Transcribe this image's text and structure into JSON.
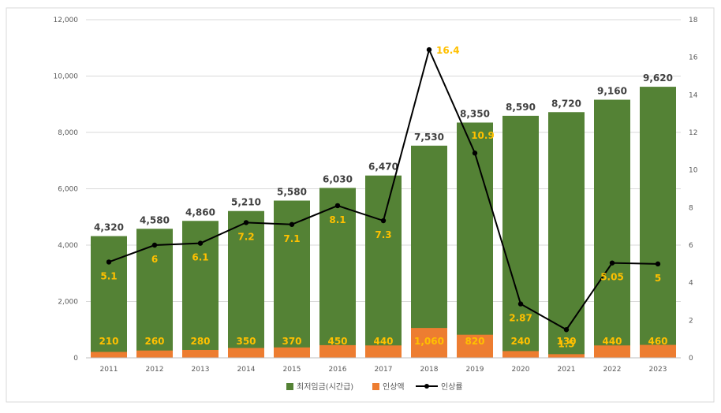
{
  "chart_data": {
    "type": "bar",
    "categories": [
      "2011",
      "2012",
      "2013",
      "2014",
      "2015",
      "2016",
      "2017",
      "2018",
      "2019",
      "2020",
      "2021",
      "2022",
      "2023"
    ],
    "series": [
      {
        "name": "최저임금(시간급)",
        "type": "bar",
        "axis": "left",
        "color": "#548235",
        "values": [
          4320,
          4580,
          4860,
          5210,
          5580,
          6030,
          6470,
          7530,
          8350,
          8590,
          8720,
          9160,
          9620
        ],
        "labels": [
          "4,320",
          "4,580",
          "4,860",
          "5,210",
          "5,580",
          "6,030",
          "6,470",
          "7,530",
          "8,350",
          "8,590",
          "8,720",
          "9,160",
          "9,620"
        ]
      },
      {
        "name": "인상액",
        "type": "bar",
        "axis": "left",
        "color": "#ed7d31",
        "values": [
          210,
          260,
          280,
          350,
          370,
          450,
          440,
          1060,
          820,
          240,
          130,
          440,
          460
        ],
        "labels": [
          "210",
          "260",
          "280",
          "350",
          "370",
          "450",
          "440",
          "1,060",
          "820",
          "240",
          "130",
          "440",
          "460"
        ]
      },
      {
        "name": "인상률",
        "type": "line",
        "axis": "right",
        "color": "#000000",
        "values": [
          5.1,
          6,
          6.1,
          7.2,
          7.1,
          8.1,
          7.3,
          16.4,
          10.9,
          2.87,
          1.5,
          5.05,
          5
        ],
        "labels": [
          "5.1",
          "6",
          "6.1",
          "7.2",
          "7.1",
          "8.1",
          "7.3",
          "16.4",
          "10.9",
          "2.87",
          "1.5",
          "5.05",
          "5"
        ]
      }
    ],
    "y_left": {
      "min": 0,
      "max": 12000,
      "ticks": [
        "0",
        "2,000",
        "4,000",
        "6,000",
        "8,000",
        "10,000",
        "12,000"
      ],
      "tick_values": [
        0,
        2000,
        4000,
        6000,
        8000,
        10000,
        12000
      ]
    },
    "y_right": {
      "min": 0,
      "max": 18,
      "ticks": [
        "0",
        "2",
        "4",
        "6",
        "8",
        "10",
        "12",
        "14",
        "16",
        "18"
      ],
      "tick_values": [
        0,
        2,
        4,
        6,
        8,
        10,
        12,
        14,
        16,
        18
      ]
    },
    "label_color": "#ffc000",
    "total_label_color": "#404040",
    "grid": true,
    "legend": "bottom-center"
  }
}
